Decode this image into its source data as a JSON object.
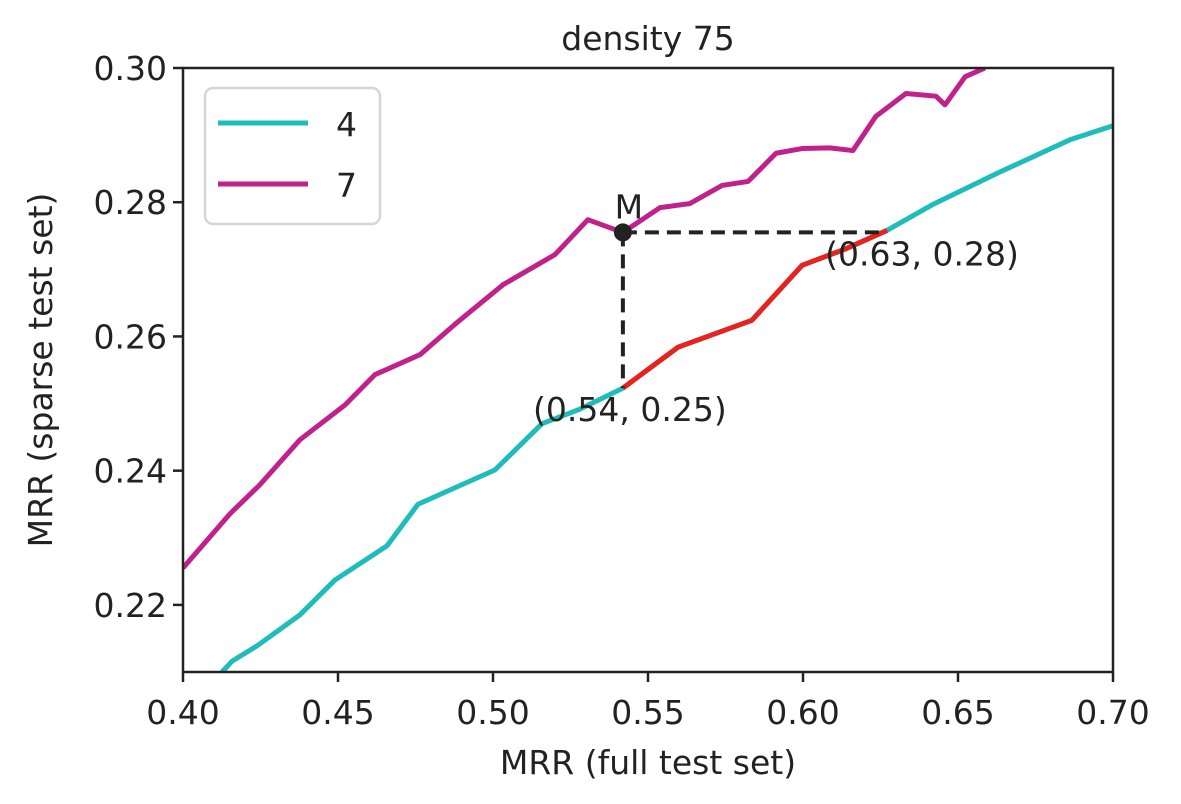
{
  "chart_data": {
    "type": "line",
    "title": "density 75",
    "xlabel": "MRR (full test set)",
    "ylabel": "MRR (sparse test set)",
    "xlim": [
      0.4,
      0.7
    ],
    "ylim": [
      0.21,
      0.3
    ],
    "xticks": [
      0.4,
      0.45,
      0.5,
      0.55,
      0.6,
      0.65,
      0.7
    ],
    "xtick_labels": [
      "0.40",
      "0.45",
      "0.50",
      "0.55",
      "0.60",
      "0.65",
      "0.70"
    ],
    "yticks": [
      0.22,
      0.24,
      0.26,
      0.28,
      0.3
    ],
    "ytick_labels": [
      "0.22",
      "0.24",
      "0.26",
      "0.28",
      "0.30"
    ],
    "grid": false,
    "legend": {
      "placement": "top-left",
      "entries": [
        "4",
        "7"
      ]
    },
    "series": [
      {
        "name": "4",
        "color": "#1fbcbc",
        "x": [
          0.4126,
          0.4158,
          0.4242,
          0.4377,
          0.449,
          0.4658,
          0.4758,
          0.5006,
          0.5158,
          0.5277,
          0.5419,
          0.5597,
          0.5835,
          0.5997,
          0.6135,
          0.6271,
          0.6416,
          0.6635,
          0.6861,
          0.7
        ],
        "y": [
          0.21,
          0.2116,
          0.214,
          0.2185,
          0.2237,
          0.2288,
          0.235,
          0.2401,
          0.247,
          0.2491,
          0.2523,
          0.2584,
          0.2624,
          0.2706,
          0.273,
          0.2758,
          0.2796,
          0.2845,
          0.2893,
          0.2914
        ]
      },
      {
        "name": "7",
        "color": "#c0218a",
        "x": [
          0.4,
          0.4152,
          0.4248,
          0.4377,
          0.4523,
          0.4619,
          0.4765,
          0.4877,
          0.5032,
          0.52,
          0.5306,
          0.5419,
          0.5539,
          0.5635,
          0.5739,
          0.5823,
          0.5913,
          0.5997,
          0.6087,
          0.6161,
          0.6235,
          0.6332,
          0.6429,
          0.6458,
          0.6523,
          0.6587
        ],
        "y": [
          0.2255,
          0.2336,
          0.2379,
          0.2446,
          0.2498,
          0.2543,
          0.2573,
          0.2618,
          0.2677,
          0.2722,
          0.2774,
          0.2755,
          0.2792,
          0.2798,
          0.2825,
          0.2831,
          0.2873,
          0.288,
          0.2881,
          0.2877,
          0.2928,
          0.2962,
          0.2958,
          0.2945,
          0.2987,
          0.3
        ]
      }
    ],
    "highlight_segment": {
      "color": "#e8221f",
      "x": [
        0.5419,
        0.5597,
        0.5835,
        0.5997,
        0.6135,
        0.6271
      ],
      "y": [
        0.2523,
        0.2584,
        0.2624,
        0.2706,
        0.273,
        0.2758
      ]
    },
    "annotations": {
      "point_m": {
        "label": "M",
        "x": 0.5419,
        "y": 0.2755
      },
      "point_low": {
        "label": "(0.54, 0.25)",
        "x": 0.5419,
        "y": 0.2523
      },
      "point_right": {
        "label": "(0.63, 0.28)",
        "x": 0.6271,
        "y": 0.2755
      }
    }
  }
}
